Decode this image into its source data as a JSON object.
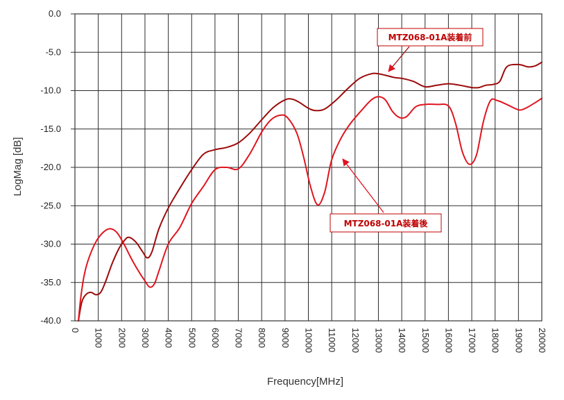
{
  "chart_data": {
    "type": "line",
    "title": "",
    "xlabel": "Frequency[MHz]",
    "ylabel": "LogMag [dB]",
    "xlim": [
      0,
      20000
    ],
    "ylim": [
      -40,
      0
    ],
    "x_ticks": [
      "0",
      "1000",
      "2000",
      "3000",
      "4000",
      "5000",
      "6000",
      "7000",
      "8000",
      "9000",
      "10000",
      "11000",
      "12000",
      "13000",
      "14000",
      "15000",
      "16000",
      "17000",
      "18000",
      "19000",
      "20000"
    ],
    "y_ticks": [
      "0.0",
      "-5.0",
      "-10.0",
      "-15.0",
      "-20.0",
      "-25.0",
      "-30.0",
      "-35.0",
      "-40.0"
    ],
    "grid": true,
    "series": [
      {
        "name": "MTZ068-01A装着前",
        "color": "#9b0a0a",
        "x": [
          150,
          300,
          500,
          700,
          900,
          1100,
          1300,
          1600,
          1900,
          2100,
          2300,
          2600,
          2900,
          3100,
          3300,
          3600,
          4000,
          4500,
          5000,
          5500,
          6000,
          6500,
          7000,
          7500,
          8000,
          8500,
          9000,
          9300,
          9600,
          10000,
          10300,
          10700,
          11200,
          11700,
          12200,
          12700,
          13000,
          13300,
          13700,
          14000,
          14500,
          15000,
          15500,
          16000,
          16500,
          17000,
          17300,
          17600,
          17900,
          18200,
          18500,
          19000,
          19400,
          19700,
          20000
        ],
        "y": [
          -40,
          -37.5,
          -36.5,
          -36.3,
          -36.6,
          -36.3,
          -35,
          -32.5,
          -30.5,
          -29.6,
          -29.1,
          -29.7,
          -31,
          -31.8,
          -31,
          -28,
          -25.3,
          -22.7,
          -20.3,
          -18.3,
          -17.7,
          -17.4,
          -16.8,
          -15.5,
          -13.8,
          -12.2,
          -11.2,
          -11.1,
          -11.5,
          -12.3,
          -12.6,
          -12.4,
          -11.2,
          -9.7,
          -8.4,
          -7.8,
          -7.8,
          -8.0,
          -8.3,
          -8.4,
          -8.8,
          -9.5,
          -9.3,
          -9.1,
          -9.3,
          -9.6,
          -9.6,
          -9.3,
          -9.2,
          -8.8,
          -6.9,
          -6.6,
          -6.9,
          -6.8,
          -6.3
        ]
      },
      {
        "name": "MTZ068-01A装着後",
        "color": "#e0141e",
        "x": [
          150,
          250,
          400,
          600,
          900,
          1200,
          1500,
          1800,
          2100,
          2400,
          2700,
          3000,
          3200,
          3400,
          3600,
          4000,
          4500,
          5000,
          5500,
          6000,
          6500,
          7000,
          7500,
          8000,
          8400,
          8800,
          9100,
          9500,
          9800,
          10100,
          10400,
          10700,
          11000,
          11400,
          11800,
          12300,
          12700,
          13000,
          13300,
          13600,
          13900,
          14200,
          14600,
          15000,
          15500,
          16000,
          16300,
          16600,
          16900,
          17200,
          17500,
          17800,
          18100,
          18500,
          19000,
          19300,
          19700,
          20000
        ],
        "y": [
          -40,
          -37,
          -34,
          -31.8,
          -29.7,
          -28.5,
          -28,
          -28.5,
          -30,
          -31.8,
          -33.4,
          -34.8,
          -35.6,
          -35.2,
          -33.5,
          -30,
          -27.8,
          -24.7,
          -22.5,
          -20.3,
          -20,
          -20.2,
          -18.2,
          -15.4,
          -13.8,
          -13.2,
          -13.5,
          -15.5,
          -18.7,
          -22.6,
          -24.9,
          -23.2,
          -19,
          -16.2,
          -14.3,
          -12.5,
          -11.2,
          -10.8,
          -11.2,
          -12.7,
          -13.5,
          -13.4,
          -12.1,
          -11.8,
          -11.8,
          -12,
          -14.2,
          -18,
          -19.6,
          -18.4,
          -14,
          -11.3,
          -11.3,
          -11.8,
          -12.5,
          -12.3,
          -11.6,
          -11
        ]
      }
    ],
    "annotations": [
      {
        "text": "MTZ068-01A装着前",
        "points_to_series": 0
      },
      {
        "text": "MTZ068-01A装着後",
        "points_to_series": 1
      }
    ]
  }
}
